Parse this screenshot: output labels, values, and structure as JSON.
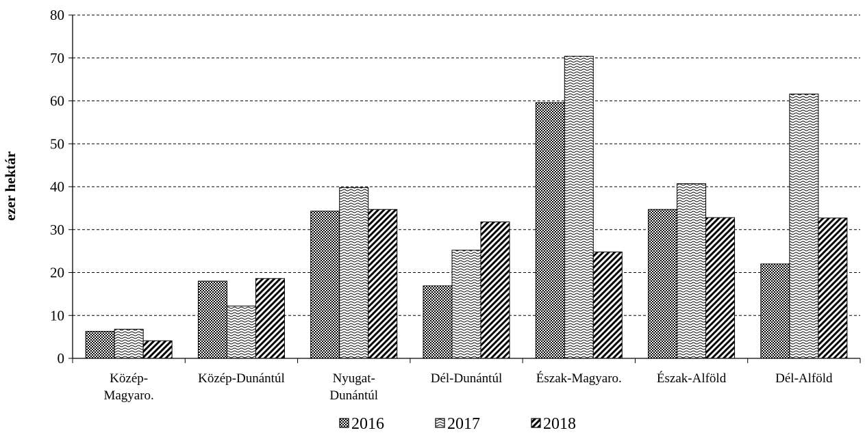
{
  "chart_data": {
    "type": "bar",
    "ylabel": "ezer hektár",
    "xlabel": "",
    "ylim": [
      0,
      80
    ],
    "yticks": [
      0,
      10,
      20,
      30,
      40,
      50,
      60,
      70,
      80
    ],
    "grid": "horizontal-dashed",
    "legend_position": "bottom",
    "categories": [
      [
        "Közép-",
        "Magyaro."
      ],
      [
        "Közép-Dunántúl"
      ],
      [
        "Nyugat-",
        "Dunántúl"
      ],
      [
        "Dél-Dunántúl"
      ],
      [
        "Észak-Magyaro."
      ],
      [
        "Észak-Alföld"
      ],
      [
        "Dél-Alföld"
      ]
    ],
    "series": [
      {
        "name": "2016",
        "pattern": "checker",
        "values": [
          6.3,
          18.0,
          34.3,
          16.9,
          59.6,
          34.7,
          22.0
        ]
      },
      {
        "name": "2017",
        "pattern": "wave",
        "values": [
          6.8,
          12.2,
          39.8,
          25.2,
          70.4,
          40.7,
          61.6
        ]
      },
      {
        "name": "2018",
        "pattern": "diagonal",
        "values": [
          4.1,
          18.6,
          34.7,
          31.8,
          24.8,
          32.8,
          32.7
        ]
      }
    ],
    "colors": {
      "ink": "#000000",
      "background": "#ffffff"
    }
  }
}
